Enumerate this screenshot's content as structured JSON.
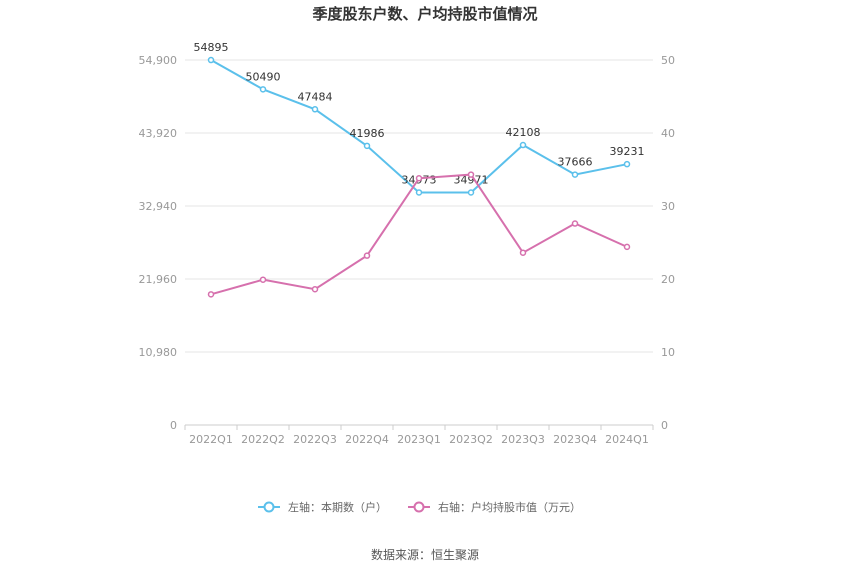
{
  "chart_data": {
    "type": "line",
    "title": "季度股东户数、户均持股市值情况",
    "categories": [
      "2022Q1",
      "2022Q2",
      "2022Q3",
      "2022Q4",
      "2023Q1",
      "2023Q2",
      "2023Q3",
      "2023Q4",
      "2024Q1"
    ],
    "left_axis": {
      "ylim": [
        0,
        54900
      ],
      "ticks": [
        "0",
        "10,980",
        "21,960",
        "32,940",
        "43,920",
        "54,900"
      ]
    },
    "right_axis": {
      "ylim": [
        0,
        50
      ],
      "ticks": [
        "0",
        "10",
        "20",
        "30",
        "40",
        "50"
      ]
    },
    "series": [
      {
        "name": "左轴：本期数（户）",
        "axis": "left",
        "color": "#5bc0eb",
        "values": [
          54895,
          50490,
          47484,
          41986,
          34973,
          34971,
          42108,
          37666,
          39231
        ],
        "labels": [
          "54895",
          "50490",
          "47484",
          "41986",
          "34973",
          "34971",
          "42108",
          "37666",
          "39231"
        ]
      },
      {
        "name": "右轴：户均持股市值（万元）",
        "axis": "right",
        "color": "#d670ad",
        "values": [
          17.9,
          19.9,
          18.6,
          23.2,
          33.8,
          34.3,
          23.6,
          27.6,
          24.4
        ]
      }
    ],
    "grid": true,
    "legend_position": "bottom"
  },
  "source_text": "数据来源：恒生聚源"
}
